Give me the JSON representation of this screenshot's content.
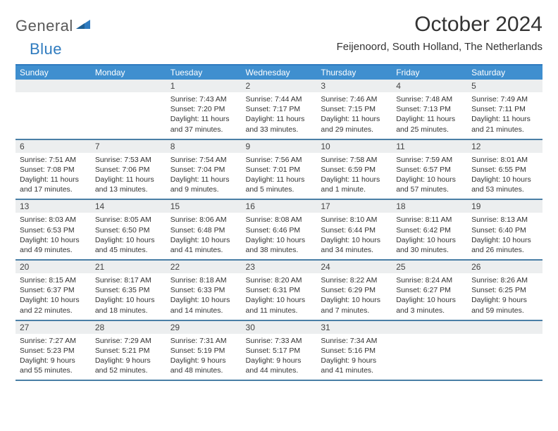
{
  "brand": {
    "part1": "General",
    "part2": "Blue",
    "color_gray": "#595959",
    "color_blue": "#2f7bbf"
  },
  "title": "October 2024",
  "location": "Feijenoord, South Holland, The Netherlands",
  "colors": {
    "header_bg": "#3f8fcf",
    "row_border": "#4a7fa6",
    "daynum_bg": "#eceeef",
    "top_border": "#2f7bbf"
  },
  "weekdays": [
    "Sunday",
    "Monday",
    "Tuesday",
    "Wednesday",
    "Thursday",
    "Friday",
    "Saturday"
  ],
  "weeks": [
    [
      null,
      null,
      {
        "n": "1",
        "sr": "7:43 AM",
        "ss": "7:20 PM",
        "dl": "11 hours and 37 minutes."
      },
      {
        "n": "2",
        "sr": "7:44 AM",
        "ss": "7:17 PM",
        "dl": "11 hours and 33 minutes."
      },
      {
        "n": "3",
        "sr": "7:46 AM",
        "ss": "7:15 PM",
        "dl": "11 hours and 29 minutes."
      },
      {
        "n": "4",
        "sr": "7:48 AM",
        "ss": "7:13 PM",
        "dl": "11 hours and 25 minutes."
      },
      {
        "n": "5",
        "sr": "7:49 AM",
        "ss": "7:11 PM",
        "dl": "11 hours and 21 minutes."
      }
    ],
    [
      {
        "n": "6",
        "sr": "7:51 AM",
        "ss": "7:08 PM",
        "dl": "11 hours and 17 minutes."
      },
      {
        "n": "7",
        "sr": "7:53 AM",
        "ss": "7:06 PM",
        "dl": "11 hours and 13 minutes."
      },
      {
        "n": "8",
        "sr": "7:54 AM",
        "ss": "7:04 PM",
        "dl": "11 hours and 9 minutes."
      },
      {
        "n": "9",
        "sr": "7:56 AM",
        "ss": "7:01 PM",
        "dl": "11 hours and 5 minutes."
      },
      {
        "n": "10",
        "sr": "7:58 AM",
        "ss": "6:59 PM",
        "dl": "11 hours and 1 minute."
      },
      {
        "n": "11",
        "sr": "7:59 AM",
        "ss": "6:57 PM",
        "dl": "10 hours and 57 minutes."
      },
      {
        "n": "12",
        "sr": "8:01 AM",
        "ss": "6:55 PM",
        "dl": "10 hours and 53 minutes."
      }
    ],
    [
      {
        "n": "13",
        "sr": "8:03 AM",
        "ss": "6:53 PM",
        "dl": "10 hours and 49 minutes."
      },
      {
        "n": "14",
        "sr": "8:05 AM",
        "ss": "6:50 PM",
        "dl": "10 hours and 45 minutes."
      },
      {
        "n": "15",
        "sr": "8:06 AM",
        "ss": "6:48 PM",
        "dl": "10 hours and 41 minutes."
      },
      {
        "n": "16",
        "sr": "8:08 AM",
        "ss": "6:46 PM",
        "dl": "10 hours and 38 minutes."
      },
      {
        "n": "17",
        "sr": "8:10 AM",
        "ss": "6:44 PM",
        "dl": "10 hours and 34 minutes."
      },
      {
        "n": "18",
        "sr": "8:11 AM",
        "ss": "6:42 PM",
        "dl": "10 hours and 30 minutes."
      },
      {
        "n": "19",
        "sr": "8:13 AM",
        "ss": "6:40 PM",
        "dl": "10 hours and 26 minutes."
      }
    ],
    [
      {
        "n": "20",
        "sr": "8:15 AM",
        "ss": "6:37 PM",
        "dl": "10 hours and 22 minutes."
      },
      {
        "n": "21",
        "sr": "8:17 AM",
        "ss": "6:35 PM",
        "dl": "10 hours and 18 minutes."
      },
      {
        "n": "22",
        "sr": "8:18 AM",
        "ss": "6:33 PM",
        "dl": "10 hours and 14 minutes."
      },
      {
        "n": "23",
        "sr": "8:20 AM",
        "ss": "6:31 PM",
        "dl": "10 hours and 11 minutes."
      },
      {
        "n": "24",
        "sr": "8:22 AM",
        "ss": "6:29 PM",
        "dl": "10 hours and 7 minutes."
      },
      {
        "n": "25",
        "sr": "8:24 AM",
        "ss": "6:27 PM",
        "dl": "10 hours and 3 minutes."
      },
      {
        "n": "26",
        "sr": "8:26 AM",
        "ss": "6:25 PM",
        "dl": "9 hours and 59 minutes."
      }
    ],
    [
      {
        "n": "27",
        "sr": "7:27 AM",
        "ss": "5:23 PM",
        "dl": "9 hours and 55 minutes."
      },
      {
        "n": "28",
        "sr": "7:29 AM",
        "ss": "5:21 PM",
        "dl": "9 hours and 52 minutes."
      },
      {
        "n": "29",
        "sr": "7:31 AM",
        "ss": "5:19 PM",
        "dl": "9 hours and 48 minutes."
      },
      {
        "n": "30",
        "sr": "7:33 AM",
        "ss": "5:17 PM",
        "dl": "9 hours and 44 minutes."
      },
      {
        "n": "31",
        "sr": "7:34 AM",
        "ss": "5:16 PM",
        "dl": "9 hours and 41 minutes."
      },
      null,
      null
    ]
  ],
  "labels": {
    "sunrise": "Sunrise:",
    "sunset": "Sunset:",
    "daylight": "Daylight:"
  }
}
